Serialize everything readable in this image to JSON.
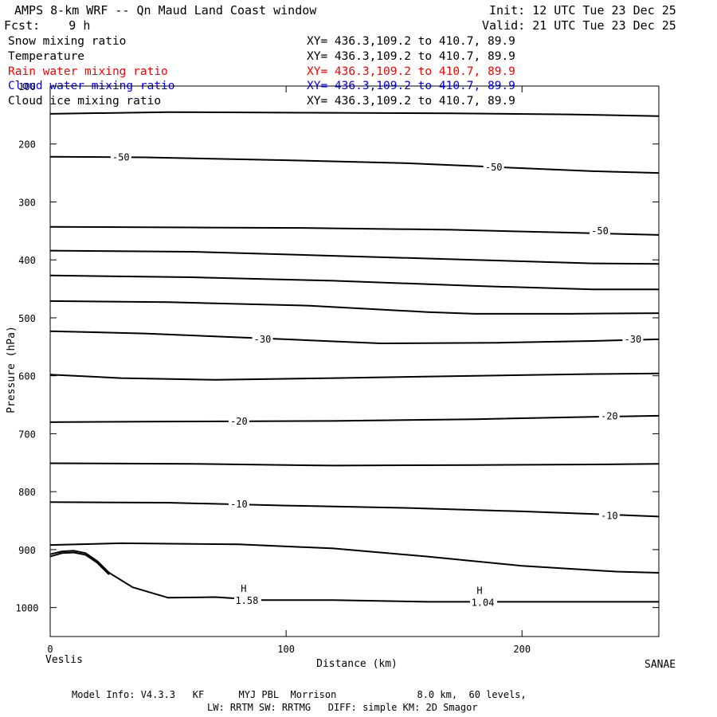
{
  "header": {
    "title": "AMPS 8-km WRF -- Qn Maud Land Coast window",
    "init": "Init: 12 UTC Tue 23 Dec 25",
    "fcst": "Fcst:    9 h",
    "valid": "Valid: 21 UTC Tue 23 Dec 25"
  },
  "fields": [
    {
      "name": "Snow mixing ratio",
      "xy": "XY= 436.3,109.2 to 410.7, 89.9",
      "color": "#000000"
    },
    {
      "name": "Temperature",
      "xy": "XY= 436.3,109.2 to 410.7, 89.9",
      "color": "#000000"
    },
    {
      "name": "Rain water mixing ratio",
      "xy": "XY= 436.3,109.2 to 410.7, 89.9",
      "color": "#ff0000"
    },
    {
      "name": "Cloud water mixing ratio",
      "xy": "XY= 436.3,109.2 to 410.7, 89.9",
      "color": "#0000ff"
    },
    {
      "name": "Cloud ice mixing ratio",
      "xy": "XY= 436.3,109.2 to 410.7, 89.9",
      "color": "#000000"
    }
  ],
  "footer": {
    "line1": "Model Info: V4.3.3   KF      MYJ PBL  Morrison              8.0 km,  60 levels,",
    "line2": "LW: RRTM SW: RRTMG   DIFF: simple KM: 2D Smagor"
  },
  "chart_data": {
    "type": "line",
    "xlabel": "Distance (km)",
    "ylabel": "Pressure (hPa)",
    "xlim": [
      0,
      258
    ],
    "ylim": [
      1050,
      100
    ],
    "x_ticks": [
      0,
      100,
      200
    ],
    "y_ticks": [
      100,
      200,
      300,
      400,
      500,
      600,
      700,
      800,
      900,
      1000
    ],
    "left_endpoint_label": "Veslis",
    "right_endpoint_label": "SANAE",
    "grid": false,
    "contours": [
      {
        "points": [
          [
            0,
            148
          ],
          [
            50,
            145
          ],
          [
            110,
            146
          ],
          [
            170,
            147
          ],
          [
            220,
            149
          ],
          [
            258,
            152
          ]
        ]
      },
      {
        "points": [
          [
            0,
            222
          ],
          [
            40,
            223
          ],
          [
            100,
            228
          ],
          [
            150,
            233
          ],
          [
            190,
            240
          ],
          [
            230,
            247
          ],
          [
            258,
            250
          ]
        ]
      },
      {
        "points": [
          [
            0,
            343
          ],
          [
            60,
            344
          ],
          [
            110,
            345
          ],
          [
            170,
            348
          ],
          [
            220,
            353
          ],
          [
            258,
            357
          ]
        ]
      },
      {
        "points": [
          [
            0,
            384
          ],
          [
            60,
            386
          ],
          [
            120,
            393
          ],
          [
            180,
            400
          ],
          [
            230,
            406
          ],
          [
            258,
            407
          ]
        ]
      },
      {
        "points": [
          [
            0,
            427
          ],
          [
            60,
            430
          ],
          [
            120,
            436
          ],
          [
            180,
            445
          ],
          [
            230,
            451
          ],
          [
            258,
            451
          ]
        ]
      },
      {
        "points": [
          [
            0,
            471
          ],
          [
            50,
            473
          ],
          [
            110,
            479
          ],
          [
            160,
            490
          ],
          [
            180,
            493
          ],
          [
            220,
            493
          ],
          [
            258,
            492
          ]
        ]
      },
      {
        "points": [
          [
            0,
            523
          ],
          [
            40,
            527
          ],
          [
            100,
            537
          ],
          [
            140,
            544
          ],
          [
            190,
            543
          ],
          [
            230,
            540
          ],
          [
            258,
            537
          ]
        ]
      },
      {
        "points": [
          [
            0,
            598
          ],
          [
            30,
            604
          ],
          [
            70,
            607
          ],
          [
            120,
            604
          ],
          [
            180,
            600
          ],
          [
            230,
            597
          ],
          [
            258,
            596
          ]
        ]
      },
      {
        "points": [
          [
            0,
            680
          ],
          [
            50,
            679
          ],
          [
            120,
            678
          ],
          [
            180,
            675
          ],
          [
            230,
            671
          ],
          [
            258,
            669
          ]
        ]
      },
      {
        "points": [
          [
            0,
            751
          ],
          [
            60,
            752
          ],
          [
            120,
            755
          ],
          [
            180,
            754
          ],
          [
            230,
            753
          ],
          [
            258,
            752
          ]
        ]
      },
      {
        "points": [
          [
            0,
            818
          ],
          [
            50,
            819
          ],
          [
            100,
            824
          ],
          [
            150,
            828
          ],
          [
            200,
            834
          ],
          [
            240,
            840
          ],
          [
            258,
            843
          ]
        ]
      },
      {
        "points": [
          [
            0,
            892
          ],
          [
            30,
            889
          ],
          [
            80,
            891
          ],
          [
            120,
            898
          ],
          [
            160,
            912
          ],
          [
            200,
            928
          ],
          [
            240,
            938
          ],
          [
            258,
            940
          ]
        ]
      },
      {
        "points": [
          [
            0,
            908
          ],
          [
            5,
            903
          ],
          [
            10,
            902
          ],
          [
            15,
            906
          ],
          [
            20,
            920
          ],
          [
            25,
            940
          ],
          [
            35,
            965
          ],
          [
            50,
            983
          ],
          [
            70,
            982
          ],
          [
            90,
            987
          ],
          [
            120,
            987
          ],
          [
            160,
            990
          ],
          [
            200,
            990
          ],
          [
            258,
            990
          ]
        ]
      },
      {
        "points": [
          [
            0,
            912
          ],
          [
            5,
            906
          ],
          [
            10,
            905
          ],
          [
            15,
            909
          ],
          [
            20,
            923
          ],
          [
            25,
            943
          ]
        ]
      }
    ],
    "contour_labels": [
      {
        "text": "-50",
        "x": 30,
        "p": 223
      },
      {
        "text": "-50",
        "x": 188,
        "p": 240
      },
      {
        "text": "-50",
        "x": 233,
        "p": 350
      },
      {
        "text": "-30",
        "x": 90,
        "p": 537
      },
      {
        "text": "-30",
        "x": 247,
        "p": 537
      },
      {
        "text": "-20",
        "x": 80,
        "p": 679
      },
      {
        "text": "-20",
        "x": 237,
        "p": 670
      },
      {
        "text": "-10",
        "x": 80,
        "p": 822
      },
      {
        "text": "-10",
        "x": 237,
        "p": 842
      }
    ],
    "extrema": [
      {
        "symbol": "H",
        "value": "1.58",
        "x": 80,
        "p": 987
      },
      {
        "symbol": "H",
        "value": "1.04",
        "x": 180,
        "p": 990
      }
    ]
  }
}
